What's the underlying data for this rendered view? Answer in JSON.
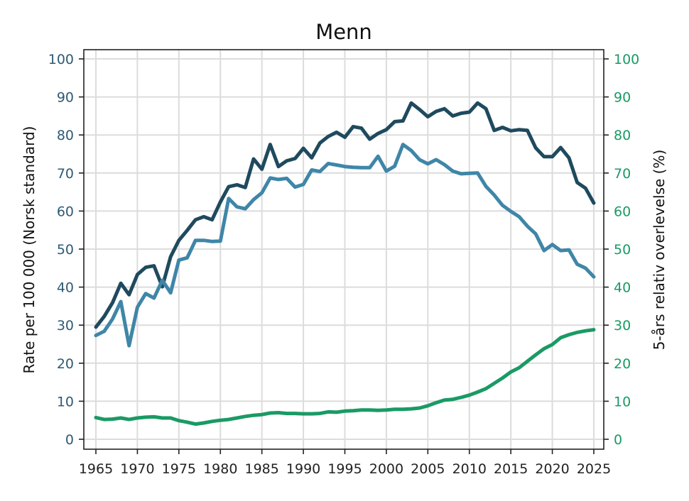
{
  "chart_data": {
    "type": "line",
    "title": "Menn",
    "ylabel_left": "Rate per 100 000 (Norsk standard)",
    "ylabel_right": "5-års relativ overlevelse (%)",
    "xlim": [
      1965,
      2025
    ],
    "ylim": [
      0,
      100
    ],
    "x_ticks": [
      "1965",
      "1970",
      "1975",
      "1980",
      "1985",
      "1990",
      "1995",
      "2000",
      "2005",
      "2010",
      "2015",
      "2020",
      "2025"
    ],
    "y_ticks": [
      "0",
      "10",
      "20",
      "30",
      "40",
      "50",
      "60",
      "70",
      "80",
      "90",
      "100"
    ],
    "grid": true,
    "colors": {
      "left_axis": "#2f5a74",
      "right_axis": "#1a9a64"
    },
    "series": [
      {
        "color": "#1f4a5e",
        "axis": "left",
        "x": [
          1965,
          1966,
          1967,
          1968,
          1969,
          1970,
          1971,
          1972,
          1973,
          1974,
          1975,
          1976,
          1977,
          1978,
          1979,
          1980,
          1981,
          1982,
          1983,
          1984,
          1985,
          1986,
          1987,
          1988,
          1989,
          1990,
          1991,
          1992,
          1993,
          1994,
          1995,
          1996,
          1997,
          1998,
          1999,
          2000,
          2001,
          2002,
          2003,
          2004,
          2005,
          2006,
          2007,
          2008,
          2009,
          2010,
          2011,
          2012,
          2013,
          2014,
          2015,
          2016,
          2017,
          2018,
          2019,
          2020,
          2021,
          2022,
          2023,
          2024,
          2025
        ],
        "values": [
          29.5,
          32.3,
          35.9,
          41.0,
          38.0,
          43.3,
          45.2,
          45.6,
          40.1,
          48.0,
          52.3,
          54.9,
          57.7,
          58.5,
          57.7,
          62.4,
          66.4,
          66.9,
          66.2,
          73.7,
          71.0,
          77.5,
          71.7,
          73.2,
          73.8,
          76.5,
          74.0,
          77.9,
          79.6,
          80.7,
          79.4,
          82.2,
          81.8,
          78.9,
          80.4,
          81.4,
          83.5,
          83.7,
          88.4,
          86.7,
          84.8,
          86.2,
          86.9,
          85.0,
          85.7,
          86.0,
          88.4,
          86.9,
          81.2,
          82.0,
          81.1,
          81.4,
          81.2,
          76.6,
          74.3,
          74.3,
          76.7,
          74.0,
          67.5,
          66.0,
          62.1
        ]
      },
      {
        "color": "#3f86a8",
        "axis": "left",
        "x": [
          1965,
          1966,
          1967,
          1968,
          1969,
          1970,
          1971,
          1972,
          1973,
          1974,
          1975,
          1976,
          1977,
          1978,
          1979,
          1980,
          1981,
          1982,
          1983,
          1984,
          1985,
          1986,
          1987,
          1988,
          1989,
          1990,
          1991,
          1992,
          1993,
          1994,
          1995,
          1996,
          1997,
          1998,
          1999,
          2000,
          2001,
          2002,
          2003,
          2004,
          2005,
          2006,
          2007,
          2008,
          2009,
          2010,
          2011,
          2012,
          2013,
          2014,
          2015,
          2016,
          2017,
          2018,
          2019,
          2020,
          2021,
          2022,
          2023,
          2024,
          2025
        ],
        "values": [
          27.3,
          28.4,
          31.6,
          36.2,
          24.6,
          34.7,
          38.3,
          37.1,
          41.8,
          38.5,
          47.1,
          47.7,
          52.3,
          52.3,
          52.0,
          52.1,
          63.3,
          61.1,
          60.6,
          63.0,
          64.8,
          68.7,
          68.3,
          68.6,
          66.3,
          67.0,
          70.8,
          70.4,
          72.5,
          72.1,
          71.7,
          71.5,
          71.4,
          71.4,
          74.4,
          70.5,
          71.8,
          77.5,
          75.9,
          73.5,
          72.4,
          73.5,
          72.2,
          70.5,
          69.8,
          69.9,
          70.0,
          66.5,
          64.2,
          61.5,
          59.9,
          58.5,
          56.0,
          54.0,
          49.6,
          51.2,
          49.6,
          49.8,
          46.0,
          45.0,
          42.7
        ]
      },
      {
        "color": "#1a9a64",
        "axis": "right",
        "x": [
          1965,
          1966,
          1967,
          1968,
          1969,
          1970,
          1971,
          1972,
          1973,
          1974,
          1975,
          1976,
          1977,
          1978,
          1979,
          1980,
          1981,
          1982,
          1983,
          1984,
          1985,
          1986,
          1987,
          1988,
          1989,
          1990,
          1991,
          1992,
          1993,
          1994,
          1995,
          1996,
          1997,
          1998,
          1999,
          2000,
          2001,
          2002,
          2003,
          2004,
          2005,
          2006,
          2007,
          2008,
          2009,
          2010,
          2011,
          2012,
          2013,
          2014,
          2015,
          2016,
          2017,
          2018,
          2019,
          2020,
          2021,
          2022,
          2023,
          2024,
          2025
        ],
        "values": [
          5.7,
          5.2,
          5.3,
          5.6,
          5.2,
          5.6,
          5.8,
          5.9,
          5.6,
          5.6,
          4.9,
          4.5,
          4.0,
          4.3,
          4.7,
          5.0,
          5.2,
          5.6,
          6.0,
          6.3,
          6.5,
          6.9,
          7.0,
          6.8,
          6.8,
          6.7,
          6.7,
          6.8,
          7.2,
          7.1,
          7.4,
          7.5,
          7.7,
          7.7,
          7.6,
          7.7,
          7.9,
          7.9,
          8.0,
          8.2,
          8.8,
          9.6,
          10.3,
          10.5,
          11.0,
          11.6,
          12.4,
          13.3,
          14.7,
          16.1,
          17.7,
          18.8,
          20.5,
          22.2,
          23.8,
          24.9,
          26.7,
          27.5,
          28.1,
          28.5,
          28.8
        ]
      }
    ]
  }
}
